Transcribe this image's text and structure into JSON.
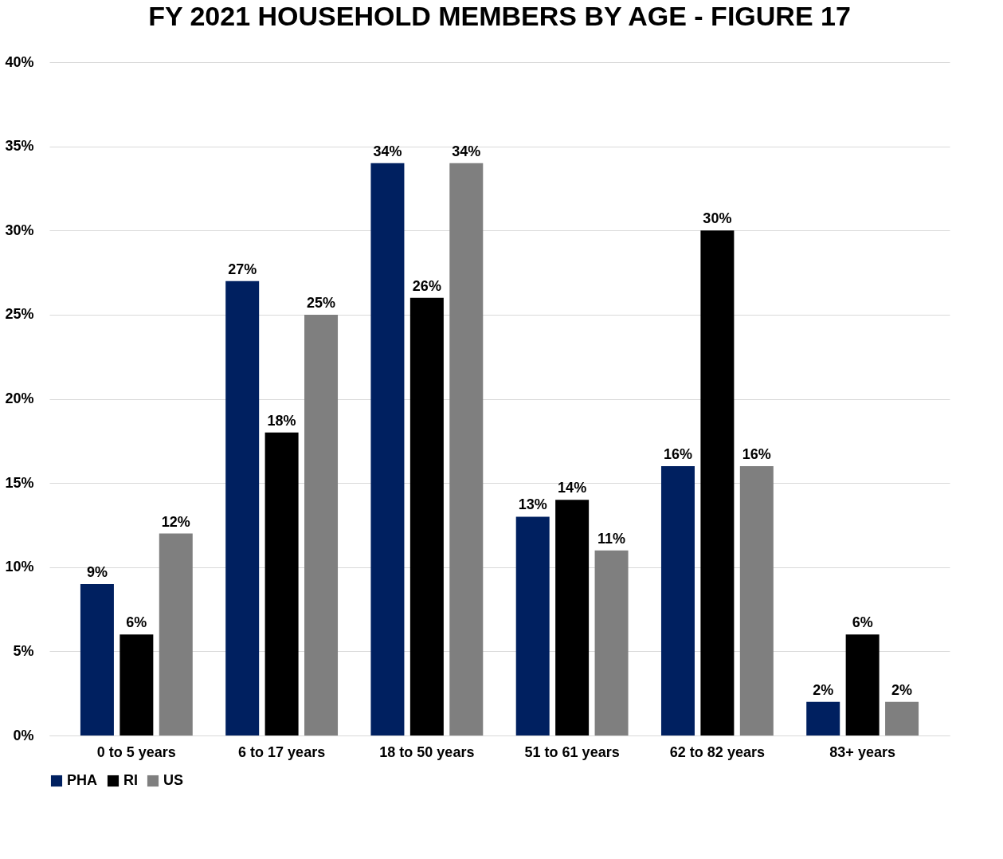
{
  "chart_data": {
    "type": "bar",
    "title": "FY 2021 HOUSEHOLD MEMBERS BY AGE - FIGURE 17",
    "categories": [
      "0 to 5 years",
      "6 to 17 years",
      "18 to 50 years",
      "51 to 61 years",
      "62 to 82 years",
      "83+ years"
    ],
    "series": [
      {
        "name": "PHA",
        "color": "#002060",
        "values": [
          9,
          27,
          34,
          13,
          16,
          2
        ],
        "value_labels": [
          "9%",
          "27%",
          "34%",
          "13%",
          "16%",
          "2%"
        ]
      },
      {
        "name": "RI",
        "color": "#000000",
        "values": [
          6,
          18,
          26,
          14,
          30,
          6
        ],
        "value_labels": [
          "6%",
          "18%",
          "26%",
          "14%",
          "30%",
          "6%"
        ]
      },
      {
        "name": "US",
        "color": "#7f7f7f",
        "values": [
          12,
          25,
          34,
          11,
          16,
          2
        ],
        "value_labels": [
          "12%",
          "25%",
          "34%",
          "11%",
          "16%",
          "2%"
        ]
      }
    ],
    "ylim": [
      0,
      40
    ],
    "yticks": [
      {
        "value": 0,
        "label": "0%"
      },
      {
        "value": 5,
        "label": "5%"
      },
      {
        "value": 10,
        "label": "10%"
      },
      {
        "value": 15,
        "label": "15%"
      },
      {
        "value": 20,
        "label": "20%"
      },
      {
        "value": 25,
        "label": "25%"
      },
      {
        "value": 30,
        "label": "30%"
      },
      {
        "value": 35,
        "label": "35%"
      },
      {
        "value": 40,
        "label": "40%"
      }
    ],
    "grid": "y",
    "legend": "bottom"
  }
}
